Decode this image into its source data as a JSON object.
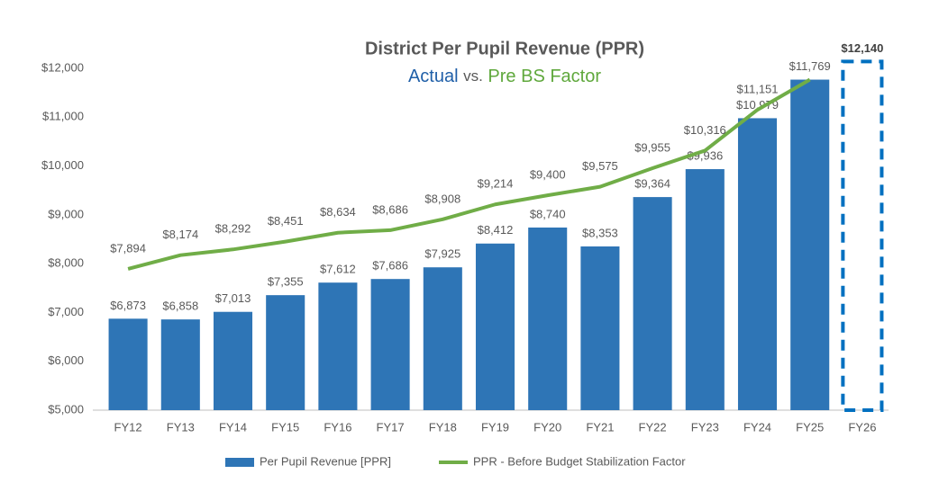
{
  "chart_data": {
    "type": "bar_line",
    "title": "District Per Pupil Revenue (PPR)",
    "subtitle": [
      "Actual",
      "vs.",
      "Pre BS Factor"
    ],
    "subtitle_colors": [
      "#1f5fa8",
      "#595959",
      "#5fa83c"
    ],
    "categories": [
      "FY12",
      "FY13",
      "FY14",
      "FY15",
      "FY16",
      "FY17",
      "FY18",
      "FY19",
      "FY20",
      "FY21",
      "FY22",
      "FY23",
      "FY24",
      "FY25",
      "FY26"
    ],
    "series": [
      {
        "name": "Per Pupil Revenue [PPR]",
        "type": "bar",
        "color": "#2e75b6",
        "values": [
          6873,
          6858,
          7013,
          7355,
          7612,
          7686,
          7925,
          8412,
          8740,
          8353,
          9364,
          9936,
          10979,
          11769,
          12140
        ],
        "value_labels": [
          "$6,873",
          "$6,858",
          "$7,013",
          "$7,355",
          "$7,612",
          "$7,686",
          "$7,925",
          "$8,412",
          "$8,740",
          "$8,353",
          "$9,364",
          "$9,936",
          "$10,979",
          "$11,769",
          "$12,140"
        ],
        "outline_last": true
      },
      {
        "name": "PPR - Before Budget Stabilization Factor",
        "type": "line",
        "color": "#70ad47",
        "values": [
          7894,
          8174,
          8292,
          8451,
          8634,
          8686,
          8908,
          9214,
          9400,
          9575,
          9955,
          10316,
          11151,
          11769,
          null
        ],
        "value_labels": [
          "$7,894",
          "$8,174",
          "$8,292",
          "$8,451",
          "$8,634",
          "$8,686",
          "$8,908",
          "$9,214",
          "$9,400",
          "$9,575",
          "$9,955",
          "$10,316",
          "$11,151",
          null,
          null
        ]
      }
    ],
    "ylim": [
      5000,
      12000
    ],
    "yticks": [
      {
        "value": 5000,
        "label": "$5,000"
      },
      {
        "value": 6000,
        "label": "$6,000"
      },
      {
        "value": 7000,
        "label": "$7,000"
      },
      {
        "value": 8000,
        "label": "$8,000"
      },
      {
        "value": 9000,
        "label": "$9,000"
      },
      {
        "value": 10000,
        "label": "$10,000"
      },
      {
        "value": 11000,
        "label": "$11,000"
      },
      {
        "value": 12000,
        "label": "$12,000"
      }
    ],
    "grid": false,
    "legend": "bottom"
  }
}
